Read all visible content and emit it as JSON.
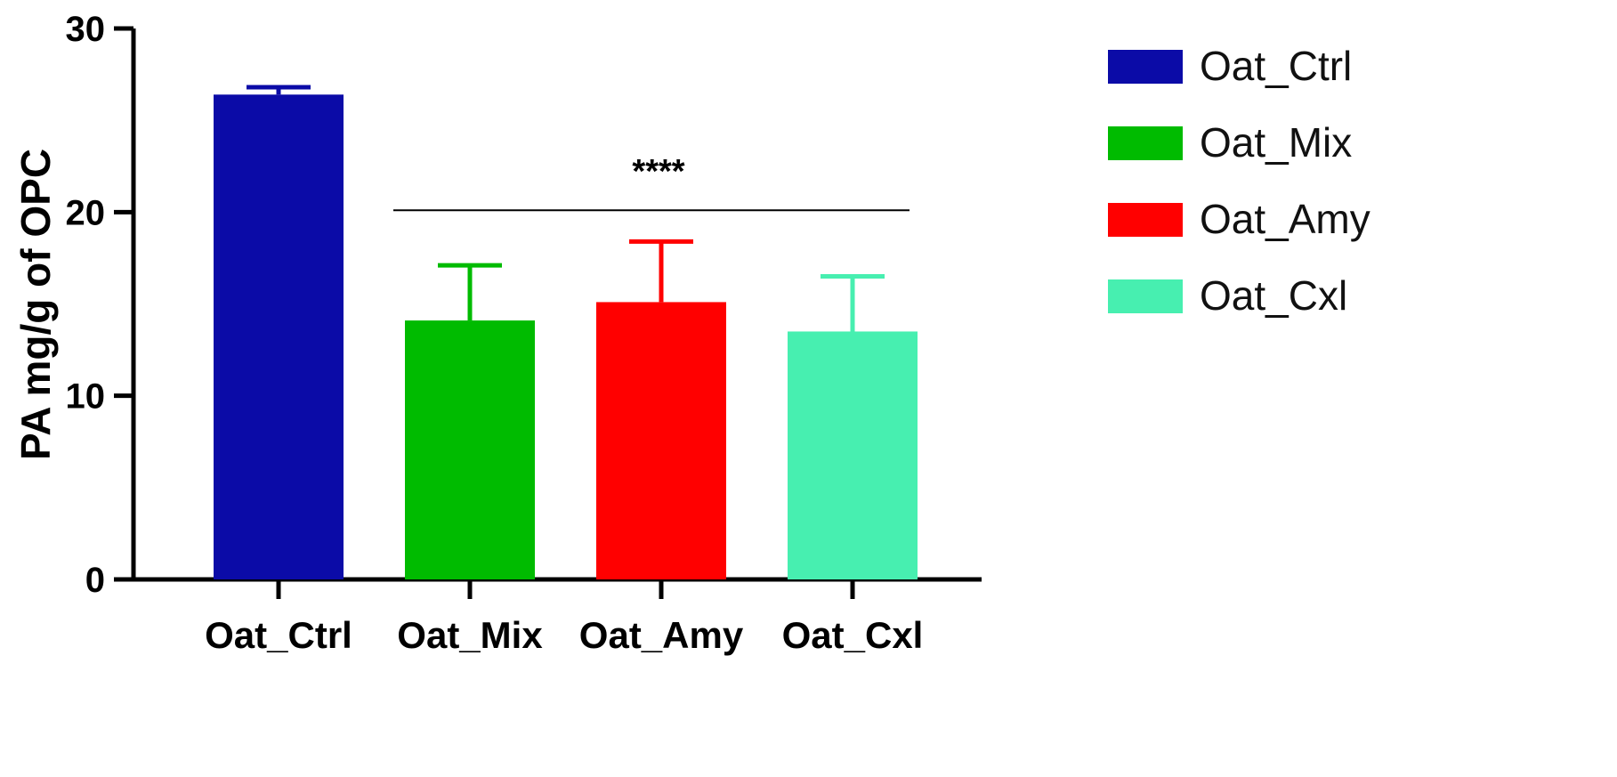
{
  "chart_data": {
    "type": "bar",
    "categories": [
      "Oat_Ctrl",
      "Oat_Mix",
      "Oat_Amy",
      "Oat_Cxl"
    ],
    "values": [
      26.4,
      14.1,
      15.1,
      13.5
    ],
    "errors": [
      0.4,
      3.0,
      3.3,
      3.0
    ],
    "colors": [
      "#0b0ba7",
      "#00bb00",
      "#ff0000",
      "#47efb0"
    ],
    "ylabel": "PA mg/g of OPC",
    "xlabel": "",
    "ylim": [
      0,
      30
    ],
    "yticks": [
      0,
      10,
      20,
      30
    ],
    "legend": {
      "placement": "right",
      "entries": [
        "Oat_Ctrl",
        "Oat_Mix",
        "Oat_Amy",
        "Oat_Cxl"
      ]
    },
    "significance": {
      "label": "****",
      "y": 20.1,
      "from_category": "Oat_Mix",
      "to_category": "Oat_Cxl"
    },
    "grid": false
  }
}
